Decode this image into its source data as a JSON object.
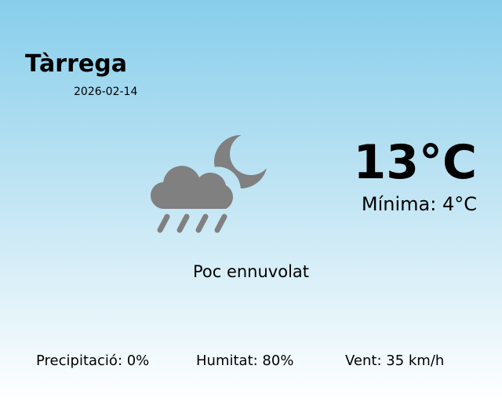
{
  "location": {
    "city": "Tàrrega",
    "date": "2026-02-14"
  },
  "current": {
    "temperature": "13°C",
    "minimum": "Mínima: 4°C",
    "description": "Poc ennuvolat",
    "icon": "rain-cloud-moon-icon",
    "icon_color": "#808080"
  },
  "stats": {
    "precipitation": "Precipitació: 0%",
    "humidity": "Humitat: 80%",
    "wind": "Vent: 35 km/h"
  }
}
